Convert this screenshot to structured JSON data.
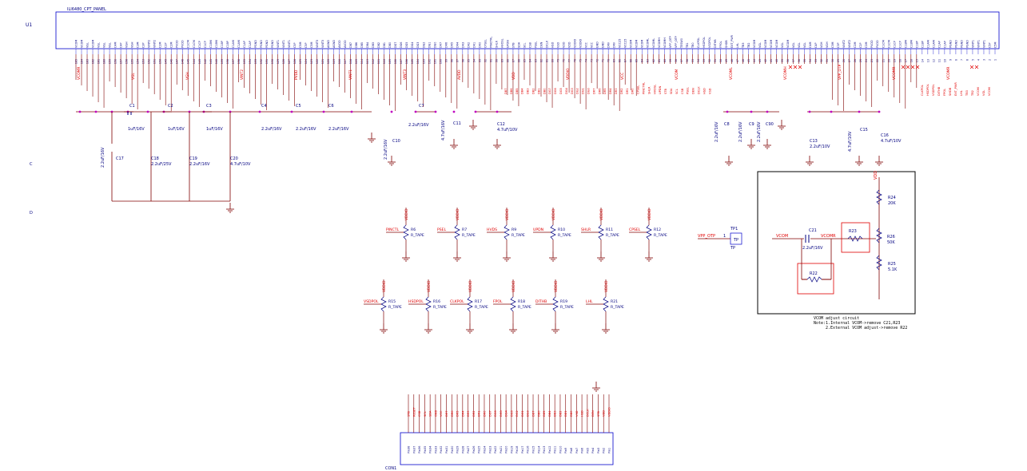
{
  "ic": {
    "ref": "U1",
    "part": "ILI6480_CPT_PANEL",
    "pins_left_first": 165,
    "pins_right_last": 1
  },
  "margin_letters": [
    "C",
    "D"
  ],
  "top_caps": [
    {
      "ref": "C1",
      "value": "1uF/16V"
    },
    {
      "ref": "C2",
      "value": "1uF/16V"
    },
    {
      "ref": "C3",
      "value": "1uF/16V"
    },
    {
      "ref": "C4",
      "value": "2.2uF/16V"
    },
    {
      "ref": "C5",
      "value": "2.2uF/16V"
    },
    {
      "ref": "C6",
      "value": "2.2uF/16V"
    },
    {
      "ref": "C7",
      "value": "2.2uF/16V"
    }
  ],
  "low_caps": [
    {
      "ref": "C17",
      "value": "2.2uF/16V"
    },
    {
      "ref": "C18",
      "value": "2.2uF/25V"
    },
    {
      "ref": "C19",
      "value": "2.2uF/16V"
    },
    {
      "ref": "C20",
      "value": "4.7uF/10V"
    }
  ],
  "other_caps": [
    {
      "ref": "C10",
      "value": "2.2uF/16V"
    },
    {
      "ref": "C11",
      "value": "4.7uF/16V"
    },
    {
      "ref": "C12",
      "value": "4.7uF/10V"
    },
    {
      "ref": "C8",
      "value": "2.2uF/16V"
    },
    {
      "ref": "C9",
      "value": "2.2uF/16V"
    },
    {
      "ref": "C90",
      "value": "2.2uF/16V"
    },
    {
      "ref": "C13",
      "value": "2.2uF/10V"
    },
    {
      "ref": "C15",
      "value": "4.7uF/10V"
    },
    {
      "ref": "C16",
      "value": "4.7uF/10V"
    }
  ],
  "nets_top": [
    "VCOMR",
    "VGL",
    "VGH",
    "VINT2",
    "PVDD",
    "VINT1",
    "VINT3",
    "AVDD",
    "VDD",
    "VDDIO",
    "VCC",
    "VCOM",
    "VCOML",
    "VCOMH",
    "VPP_OTP",
    "VCOMR",
    "VCOMR"
  ],
  "strap_resistors": [
    {
      "ref": "R6",
      "value": "R_TAPE",
      "net": "PINCTL",
      "supply": "VDDIO"
    },
    {
      "ref": "R7",
      "value": "R_TAPE",
      "net": "PSEL",
      "supply": "VDDIO"
    },
    {
      "ref": "R9",
      "value": "R_TAPE",
      "net": "HVDS",
      "supply": "VDDIO"
    },
    {
      "ref": "R10",
      "value": "R_TAPE",
      "net": "UPDN",
      "supply": "VDDIO"
    },
    {
      "ref": "R11",
      "value": "R_TAPE",
      "net": "SHLR",
      "supply": "VDDIO"
    },
    {
      "ref": "R12",
      "value": "R_TAPE",
      "net": "CPSEL",
      "supply": "VDDIO"
    },
    {
      "ref": "R15",
      "value": "R_TAPE",
      "net": "VSDPOL",
      "supply": "VDDIO"
    },
    {
      "ref": "R16",
      "value": "R_TAPE",
      "net": "HSDPOL",
      "supply": "VDDIO"
    },
    {
      "ref": "R17",
      "value": "R_TAPE",
      "net": "CLKPOL",
      "supply": "VDDIO"
    },
    {
      "ref": "R18",
      "value": "R_TAPE",
      "net": "FPOL",
      "supply": "VDDIO"
    },
    {
      "ref": "R19",
      "value": "R_TAPE",
      "net": "DITHB",
      "supply": "VDDIO"
    },
    {
      "ref": "R21",
      "value": "R_TAPE",
      "net": "LHL",
      "supply": "VDDIO"
    }
  ],
  "testpoint": {
    "net": "VPP_OTP",
    "ref": "TP1",
    "label": "TP",
    "sub": "TP",
    "pin": "1"
  },
  "vcom_box": {
    "net_in": "VCOM",
    "net_out": "VCOMR",
    "cap": {
      "ref": "C21",
      "value": "2.2uF/16V"
    },
    "r22": "R22",
    "r23": "R23",
    "r24": {
      "ref": "R24",
      "value": "20K"
    },
    "r26": {
      "ref": "R26",
      "value": "50K"
    },
    "r25": {
      "ref": "R25",
      "value": "5.1K"
    },
    "supply": "VDD",
    "note1": "VCOM adjust circuit",
    "note2": "Note:1.Internal VCOM->remove C21,R23",
    "note3": "2.External VCOM adjust->remove R22"
  },
  "connector": {
    "ref": "CON1",
    "pins": [
      "Pin1",
      "Pin2",
      "Pin3",
      "Pin4",
      "Pin5",
      "Pin6",
      "Pin7",
      "Pin8",
      "Pin9",
      "Pin10",
      "Pin11",
      "Pin12",
      "Pin13",
      "Pin14",
      "Pin15",
      "Pin16",
      "Pin17",
      "Pin18",
      "Pin19",
      "Pin20",
      "Pin21",
      "Pin22",
      "Pin23",
      "Pin24",
      "Pin25",
      "Pin26",
      "Pin27",
      "Pin28",
      "Pin29",
      "Pin30",
      "Pin31",
      "Pin32",
      "Pin33",
      "Pin34",
      "Pin35",
      "Pin36",
      "Pin37",
      "Pin38"
    ],
    "nets": [
      "VDDIO",
      "VDD",
      "STB",
      "DEN",
      "DCLK",
      "HSD",
      "VSD",
      "DB0",
      "DB1",
      "DB2",
      "DB3",
      "DB4",
      "DB5",
      "DB6",
      "DB7",
      "DG0",
      "DG1",
      "DG2",
      "DG3",
      "DG4",
      "DG5",
      "DG6",
      "DG7",
      "DR0",
      "DR1",
      "DR2",
      "DR3",
      "DR4",
      "DR5",
      "DR6",
      "DR7",
      "VCC",
      "GND",
      "SDA",
      "SCL",
      "CSB",
      "RESET",
      "STB"
    ]
  },
  "pin_names_left": [
    "VCOM",
    "VCOM",
    "VGL",
    "VCOM",
    "VGL",
    "VGL",
    "VGL",
    "C4M",
    "C4P",
    "VGH",
    "VGH",
    "C3M",
    "C3P",
    "VINT2",
    "VINT2",
    "C2M",
    "C2P",
    "C2M",
    "PVDD",
    "PVDD",
    "C1CM",
    "C1CM",
    "C1CP",
    "C1CP",
    "C1BM",
    "C1BM",
    "C1BP",
    "C1BP",
    "C1AM",
    "C1AM",
    "C1AP",
    "C1AP",
    "PGND",
    "PGND",
    "PGND",
    "PGND",
    "VINT1",
    "VINT1",
    "VINT1",
    "C5P",
    "C5M",
    "C5P",
    "C5M",
    "VINT3",
    "VINT3",
    "AGND",
    "AGND",
    "AVDD",
    "AVDD"
  ],
  "pin_names_mid": [
    "DB7",
    "DB6",
    "DB5",
    "DB4",
    "DB3",
    "DB2",
    "DB1",
    "DB0",
    "DG7",
    "DG6",
    "DG5",
    "DG4",
    "DG3",
    "DG2",
    "DG1",
    "DG0",
    "DR7",
    "DR6",
    "DR5",
    "DR4",
    "DR3",
    "DR2",
    "DR1",
    "DR0",
    "CPSEL",
    "PINCTRL",
    "SHLR",
    "HVDSL",
    "UPDN",
    "STB",
    "SDA",
    "SCL",
    "CSB",
    "PSEL",
    "DEN",
    "DCLK",
    "HSD",
    "VSD"
  ],
  "pin_names_right": [
    "VDD",
    "VDD",
    "VDDIO",
    "VDDIO",
    "VCC",
    "VCC",
    "GND",
    "GND",
    "DRV",
    "DRV",
    "VCC25",
    "VCC25",
    "VCOM",
    "VCOM",
    "VCOM",
    "VCOML",
    "VCOML",
    "VCOMH",
    "VCOMH",
    "VPP_OTP",
    "VPP_OTP",
    "TESW0",
    "TB1",
    "TB0",
    "CLKPOL",
    "HSDPOL",
    "VSDPOL",
    "DITHB",
    "FPOL",
    "SHDB",
    "EXT_PWR",
    "LHL",
    "TB3",
    "TB2",
    "VCOM",
    "VGL",
    "VCOM"
  ],
  "pin_numbers_sample": [
    "165",
    "164",
    "163",
    "162",
    "161",
    "160",
    "159",
    "158",
    "157",
    "156",
    "155",
    "154",
    "153",
    "152",
    "151",
    "150",
    "149",
    "148",
    "147",
    "146",
    "145"
  ],
  "colors": {
    "wire": "#800000",
    "text": "#000080",
    "net": "#e00000",
    "junction": "#c000c0",
    "gnd": "#800000",
    "box": "#000000",
    "body": "#0000cc"
  }
}
